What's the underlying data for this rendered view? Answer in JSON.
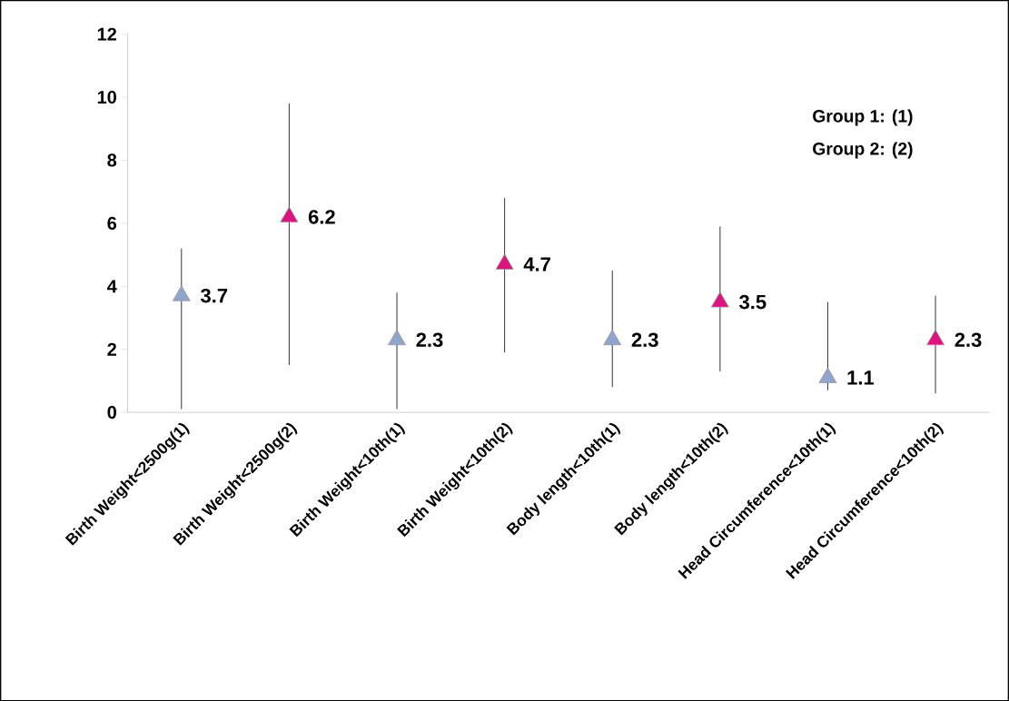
{
  "chart_data": {
    "type": "scatter",
    "categories": [
      "Birth Weight<2500g(1)",
      "Birth Weight<2500g(2)",
      "Birth Weight<10th(1)",
      "Birth Weight<10th(2)",
      "Body length<10th(1)",
      "Body length<10th(2)",
      "Head Circumference<10th(1)",
      "Head Circumference<10th(2)"
    ],
    "values": [
      3.7,
      6.2,
      2.3,
      4.7,
      2.3,
      3.5,
      1.1,
      2.3
    ],
    "colors": [
      "#8fa5cb",
      "#e0127f",
      "#8fa5cb",
      "#e0127f",
      "#8fa5cb",
      "#e0127f",
      "#8fa5cb",
      "#e0127f"
    ],
    "errors": [
      [
        0.1,
        5.2
      ],
      [
        1.5,
        9.8
      ],
      [
        0.1,
        3.8
      ],
      [
        1.9,
        6.8
      ],
      [
        0.8,
        4.5
      ],
      [
        1.3,
        5.9
      ],
      [
        0.7,
        3.5
      ],
      [
        0.6,
        3.7
      ]
    ],
    "ylim": [
      0,
      12
    ],
    "yticks": [
      0,
      2,
      4,
      6,
      8,
      10,
      12
    ],
    "marker": "triangle",
    "data_labels": true,
    "grid": false,
    "annotations": [
      "Group 1: (1)",
      "Group 2: (2)"
    ]
  }
}
